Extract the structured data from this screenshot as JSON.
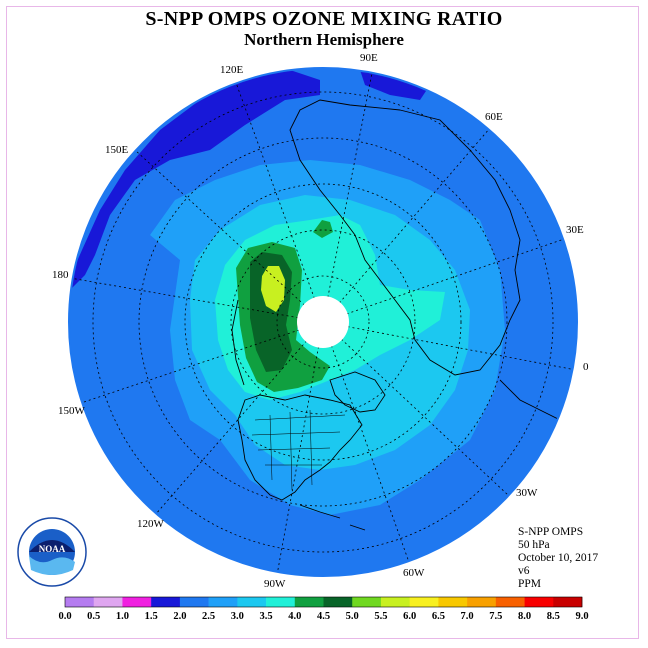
{
  "title": "S-NPP OMPS OZONE MIXING RATIO",
  "subtitle": "Northern Hemisphere",
  "info": {
    "line1": "S-NPP OMPS",
    "line2": "50 hPa",
    "line3": "October 10, 2017",
    "line4": "v6",
    "line5": "PPM"
  },
  "logo_text": "NOAA",
  "logo_ring_text": "NATIONAL OCEANIC AND ATMOSPHERIC ADMINISTRATION · U.S. DEPARTMENT OF COMMERCE",
  "longitude_labels": [
    {
      "text": "90E"
    },
    {
      "text": "60E"
    },
    {
      "text": "30E"
    },
    {
      "text": "0"
    },
    {
      "text": "30W"
    },
    {
      "text": "60W"
    },
    {
      "text": "90W"
    },
    {
      "text": "120W"
    },
    {
      "text": "150W"
    },
    {
      "text": "180"
    },
    {
      "text": "150E"
    },
    {
      "text": "120E"
    }
  ],
  "colorbar": {
    "ticks": [
      "0.0",
      "0.5",
      "1.0",
      "1.5",
      "2.0",
      "2.5",
      "3.0",
      "3.5",
      "4.0",
      "4.5",
      "5.0",
      "5.5",
      "6.0",
      "6.5",
      "7.0",
      "7.5",
      "8.0",
      "8.5",
      "9.0"
    ],
    "colors": [
      "#b57cf0",
      "#dfa6f0",
      "#f020e0",
      "#1818d8",
      "#1f78f0",
      "#1fa0f8",
      "#1cc8f0",
      "#20f0d8",
      "#10a040",
      "#086428",
      "#70d820",
      "#c8f020",
      "#f8f020",
      "#f8c800",
      "#f8a000",
      "#f86000",
      "#f80000",
      "#c80000"
    ]
  }
}
